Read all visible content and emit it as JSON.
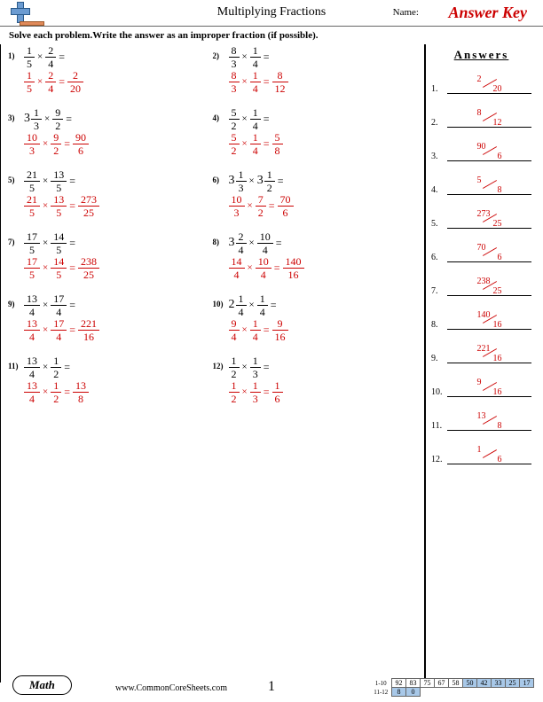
{
  "header": {
    "title": "Multiplying Fractions",
    "name_label": "Name:",
    "answer_key": "Answer Key"
  },
  "instruction": "Solve each problem.Write the answer as an improper fraction (if possible).",
  "answers_title": "Answers",
  "colors": {
    "answer": "#cc0000",
    "black": "#000000"
  },
  "problems": [
    {
      "num": "1)",
      "q_whole1": "",
      "q_n1": "1",
      "q_d1": "5",
      "q_n2": "2",
      "q_d2": "4",
      "a_n1": "1",
      "a_d1": "5",
      "a_n2": "2",
      "a_d2": "4",
      "a_rn": "2",
      "a_rd": "20"
    },
    {
      "num": "2)",
      "q_whole1": "",
      "q_n1": "8",
      "q_d1": "3",
      "q_n2": "1",
      "q_d2": "4",
      "a_n1": "8",
      "a_d1": "3",
      "a_n2": "1",
      "a_d2": "4",
      "a_rn": "8",
      "a_rd": "12"
    },
    {
      "num": "3)",
      "q_whole1": "3",
      "q_n1": "1",
      "q_d1": "3",
      "q_n2": "9",
      "q_d2": "2",
      "a_n1": "10",
      "a_d1": "3",
      "a_n2": "9",
      "a_d2": "2",
      "a_rn": "90",
      "a_rd": "6"
    },
    {
      "num": "4)",
      "q_whole1": "",
      "q_n1": "5",
      "q_d1": "2",
      "q_n2": "1",
      "q_d2": "4",
      "a_n1": "5",
      "a_d1": "2",
      "a_n2": "1",
      "a_d2": "4",
      "a_rn": "5",
      "a_rd": "8"
    },
    {
      "num": "5)",
      "q_whole1": "",
      "q_n1": "21",
      "q_d1": "5",
      "q_n2": "13",
      "q_d2": "5",
      "a_n1": "21",
      "a_d1": "5",
      "a_n2": "13",
      "a_d2": "5",
      "a_rn": "273",
      "a_rd": "25"
    },
    {
      "num": "6)",
      "q_whole1": "3",
      "q_n1": "1",
      "q_d1": "3",
      "q_whole2": "3",
      "q_n2": "1",
      "q_d2": "2",
      "a_n1": "10",
      "a_d1": "3",
      "a_n2": "7",
      "a_d2": "2",
      "a_rn": "70",
      "a_rd": "6"
    },
    {
      "num": "7)",
      "q_whole1": "",
      "q_n1": "17",
      "q_d1": "5",
      "q_n2": "14",
      "q_d2": "5",
      "a_n1": "17",
      "a_d1": "5",
      "a_n2": "14",
      "a_d2": "5",
      "a_rn": "238",
      "a_rd": "25"
    },
    {
      "num": "8)",
      "q_whole1": "3",
      "q_n1": "2",
      "q_d1": "4",
      "q_n2": "10",
      "q_d2": "4",
      "a_n1": "14",
      "a_d1": "4",
      "a_n2": "10",
      "a_d2": "4",
      "a_rn": "140",
      "a_rd": "16"
    },
    {
      "num": "9)",
      "q_whole1": "",
      "q_n1": "13",
      "q_d1": "4",
      "q_n2": "17",
      "q_d2": "4",
      "a_n1": "13",
      "a_d1": "4",
      "a_n2": "17",
      "a_d2": "4",
      "a_rn": "221",
      "a_rd": "16"
    },
    {
      "num": "10)",
      "q_whole1": "2",
      "q_n1": "1",
      "q_d1": "4",
      "q_n2": "1",
      "q_d2": "4",
      "a_n1": "9",
      "a_d1": "4",
      "a_n2": "1",
      "a_d2": "4",
      "a_rn": "9",
      "a_rd": "16"
    },
    {
      "num": "11)",
      "q_whole1": "",
      "q_n1": "13",
      "q_d1": "4",
      "q_n2": "1",
      "q_d2": "2",
      "a_n1": "13",
      "a_d1": "4",
      "a_n2": "1",
      "a_d2": "2",
      "a_rn": "13",
      "a_rd": "8"
    },
    {
      "num": "12)",
      "q_whole1": "",
      "q_n1": "1",
      "q_d1": "2",
      "q_n2": "1",
      "q_d2": "3",
      "a_n1": "1",
      "a_d1": "2",
      "a_n2": "1",
      "a_d2": "3",
      "a_rn": "1",
      "a_rd": "6"
    }
  ],
  "answers": [
    {
      "i": "1.",
      "n": "2",
      "d": "20"
    },
    {
      "i": "2.",
      "n": "8",
      "d": "12"
    },
    {
      "i": "3.",
      "n": "90",
      "d": "6"
    },
    {
      "i": "4.",
      "n": "5",
      "d": "8"
    },
    {
      "i": "5.",
      "n": "273",
      "d": "25"
    },
    {
      "i": "6.",
      "n": "70",
      "d": "6"
    },
    {
      "i": "7.",
      "n": "238",
      "d": "25"
    },
    {
      "i": "8.",
      "n": "140",
      "d": "16"
    },
    {
      "i": "9.",
      "n": "221",
      "d": "16"
    },
    {
      "i": "10.",
      "n": "9",
      "d": "16"
    },
    {
      "i": "11.",
      "n": "13",
      "d": "8"
    },
    {
      "i": "12.",
      "n": "1",
      "d": "6"
    }
  ],
  "footer": {
    "math": "Math",
    "site": "www.CommonCoreSheets.com",
    "page": "1",
    "row1_label": "1-10",
    "row2_label": "11-12",
    "row1": [
      "92",
      "83",
      "75",
      "67",
      "58",
      "50",
      "42",
      "33",
      "25",
      "17"
    ],
    "row2": [
      "8",
      "0"
    ],
    "row1_colors": [
      "#fff",
      "#fff",
      "#fff",
      "#fff",
      "#fff",
      "#a8c8e8",
      "#a8c8e8",
      "#a8c8e8",
      "#a8c8e8",
      "#a8c8e8"
    ],
    "row2_colors": [
      "#a8c8e8",
      "#a8c8e8"
    ]
  }
}
